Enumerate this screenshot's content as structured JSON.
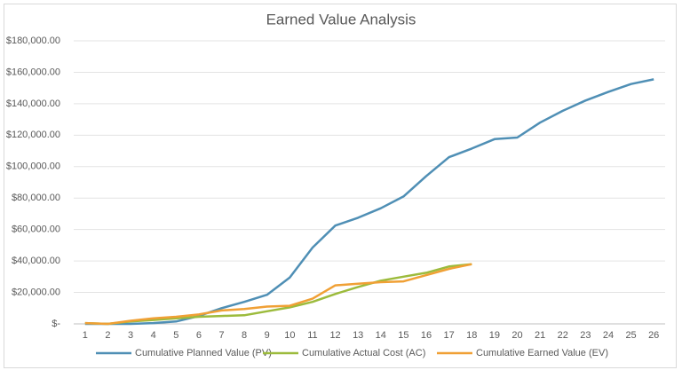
{
  "chart_data": {
    "type": "line",
    "title": "Earned Value Analysis",
    "categories": [
      "1",
      "2",
      "3",
      "4",
      "5",
      "6",
      "7",
      "8",
      "9",
      "10",
      "11",
      "12",
      "13",
      "14",
      "15",
      "16",
      "17",
      "18",
      "19",
      "20",
      "21",
      "22",
      "23",
      "24",
      "25",
      "26"
    ],
    "series": [
      {
        "name": "Cumulative Planned Value (PV)",
        "color": "#4f8fb5",
        "values": [
          0,
          0,
          0,
          500,
          1500,
          5000,
          10000,
          14000,
          18500,
          29500,
          48500,
          62500,
          67500,
          73500,
          81000,
          94000,
          106000,
          111500,
          117500,
          118500,
          128000,
          135500,
          142000,
          147500,
          152500,
          155500
        ]
      },
      {
        "name": "Cumulative Actual Cost (AC)",
        "color": "#9cbb3c",
        "values": [
          500,
          0,
          1500,
          2500,
          3500,
          4500,
          5000,
          5500,
          8000,
          10500,
          14000,
          19000,
          23500,
          27500,
          30000,
          32500,
          36500,
          38000,
          null,
          null,
          null,
          null,
          null,
          null,
          null,
          null
        ]
      },
      {
        "name": "Cumulative Earned Value (EV)",
        "color": "#f0a035",
        "values": [
          500,
          0,
          2000,
          3500,
          4500,
          6000,
          8500,
          9500,
          11000,
          11500,
          16000,
          24500,
          25500,
          26500,
          27000,
          31000,
          35000,
          38000,
          null,
          null,
          null,
          null,
          null,
          null,
          null,
          null
        ]
      }
    ],
    "ylim": [
      0,
      180000
    ],
    "yticks": [
      {
        "value": 0,
        "label": "$-"
      },
      {
        "value": 20000,
        "label": "$20,000.00"
      },
      {
        "value": 40000,
        "label": "$40,000.00"
      },
      {
        "value": 60000,
        "label": "$60,000.00"
      },
      {
        "value": 80000,
        "label": "$80,000.00"
      },
      {
        "value": 100000,
        "label": "$100,000.00"
      },
      {
        "value": 120000,
        "label": "$120,000.00"
      },
      {
        "value": 140000,
        "label": "$140,000.00"
      },
      {
        "value": 160000,
        "label": "$160,000.00"
      },
      {
        "value": 180000,
        "label": "$180,000.00"
      }
    ],
    "grid": true,
    "legend": "bottom"
  }
}
